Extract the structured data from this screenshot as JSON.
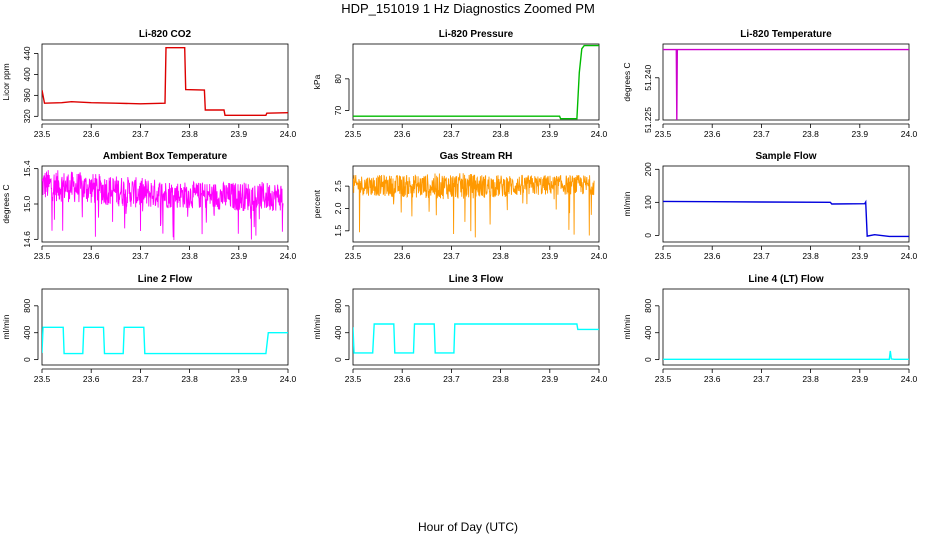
{
  "figure": {
    "title": "HDP_151019  1 Hz Diagnostics Zoomed PM",
    "xlabel": "Hour of Day (UTC)"
  },
  "chart_data": [
    {
      "type": "line",
      "title": "Li-820 CO2",
      "ylabel": "Licor ppm",
      "color": "#dd0000",
      "xlim": [
        23.5,
        24.0
      ],
      "ylim": [
        313,
        458
      ],
      "xticks": [
        23.5,
        23.6,
        23.7,
        23.8,
        23.9,
        24.0
      ],
      "xtick_labels": [
        "23.5",
        "23.6",
        "23.7",
        "23.8",
        "23.9",
        "24.0"
      ],
      "yticks": [
        320,
        360,
        400,
        440
      ],
      "ytick_labels": [
        "320",
        "360",
        "400",
        "440"
      ],
      "series": [
        {
          "style": "step",
          "points": [
            [
              23.5,
              370
            ],
            [
              23.505,
              345
            ],
            [
              23.54,
              346
            ],
            [
              23.56,
              348
            ],
            [
              23.6,
              346
            ],
            [
              23.65,
              345
            ],
            [
              23.7,
              344
            ],
            [
              23.75,
              345
            ],
            [
              23.752,
              451
            ],
            [
              23.79,
              451
            ],
            [
              23.792,
              371
            ],
            [
              23.83,
              370
            ],
            [
              23.832,
              332
            ],
            [
              23.87,
              332
            ],
            [
              23.872,
              322
            ],
            [
              23.955,
              322
            ],
            [
              23.957,
              326
            ],
            [
              24.0,
              327
            ]
          ]
        }
      ]
    },
    {
      "type": "line",
      "title": "Li-820 Pressure",
      "ylabel": "kPa",
      "color": "#00bb00",
      "xlim": [
        23.5,
        24.0
      ],
      "ylim": [
        67,
        91
      ],
      "xticks": [
        23.5,
        23.6,
        23.7,
        23.8,
        23.9,
        24.0
      ],
      "xtick_labels": [
        "23.5",
        "23.6",
        "23.7",
        "23.8",
        "23.9",
        "24.0"
      ],
      "yticks": [
        70,
        80
      ],
      "ytick_labels": [
        "70",
        "80"
      ],
      "series": [
        {
          "style": "step",
          "points": [
            [
              23.5,
              68.2
            ],
            [
              23.92,
              68.2
            ],
            [
              23.922,
              67.4
            ],
            [
              23.955,
              67.4
            ],
            [
              23.96,
              82
            ],
            [
              23.965,
              89.5
            ],
            [
              23.97,
              90.5
            ],
            [
              24.0,
              90.5
            ]
          ]
        }
      ]
    },
    {
      "type": "line",
      "title": "Li-820 Temperature",
      "ylabel": "degrees C",
      "color": "#cc00cc",
      "xlim": [
        23.5,
        24.0
      ],
      "ylim": [
        51.225,
        51.252
      ],
      "xticks": [
        23.5,
        23.6,
        23.7,
        23.8,
        23.9,
        24.0
      ],
      "xtick_labels": [
        "23.5",
        "23.6",
        "23.7",
        "23.8",
        "23.9",
        "24.0"
      ],
      "yticks": [
        51.225,
        51.24
      ],
      "ytick_labels": [
        "51.225",
        "51.240"
      ],
      "series": [
        {
          "style": "step",
          "points": [
            [
              23.5,
              51.25
            ],
            [
              23.527,
              51.25
            ],
            [
              23.528,
              51.225
            ],
            [
              23.529,
              51.25
            ],
            [
              24.0,
              51.25
            ]
          ]
        }
      ]
    },
    {
      "type": "line",
      "title": "Ambient Box Temperature",
      "ylabel": "degrees C",
      "color": "#ff00ff",
      "xlim": [
        23.5,
        24.0
      ],
      "ylim": [
        14.57,
        15.43
      ],
      "xticks": [
        23.5,
        23.6,
        23.7,
        23.8,
        23.9,
        24.0
      ],
      "xtick_labels": [
        "23.5",
        "23.6",
        "23.7",
        "23.8",
        "23.9",
        "24.0"
      ],
      "yticks": [
        14.6,
        15.0,
        15.4
      ],
      "ytick_labels": [
        "14.6",
        "15.0",
        "15.4"
      ],
      "series": [
        {
          "style": "band",
          "points": [
            [
              23.5,
              15.04,
              15.4
            ],
            [
              23.6,
              15.0,
              15.35
            ],
            [
              23.7,
              14.95,
              15.3
            ],
            [
              23.8,
              14.95,
              15.25
            ],
            [
              23.9,
              14.92,
              15.25
            ],
            [
              23.99,
              14.92,
              15.25
            ]
          ]
        }
      ]
    },
    {
      "type": "line",
      "title": "Gas Stream RH",
      "ylabel": "percent",
      "color": "#ff9900",
      "xlim": [
        23.5,
        24.0
      ],
      "ylim": [
        1.25,
        2.95
      ],
      "xticks": [
        23.5,
        23.6,
        23.7,
        23.8,
        23.9,
        24.0
      ],
      "xtick_labels": [
        "23.5",
        "23.6",
        "23.7",
        "23.8",
        "23.9",
        "24.0"
      ],
      "yticks": [
        1.5,
        2.0,
        2.5
      ],
      "ytick_labels": [
        "1.5",
        "2.0",
        "2.5"
      ],
      "series": [
        {
          "style": "band",
          "points": [
            [
              23.5,
              2.3,
              2.75
            ],
            [
              23.6,
              2.25,
              2.75
            ],
            [
              23.7,
              2.2,
              2.8
            ],
            [
              23.8,
              2.25,
              2.75
            ],
            [
              23.9,
              2.3,
              2.75
            ],
            [
              23.99,
              2.3,
              2.75
            ]
          ]
        }
      ]
    },
    {
      "type": "line",
      "title": "Sample Flow",
      "ylabel": "ml/min",
      "color": "#0000dd",
      "xlim": [
        23.5,
        24.0
      ],
      "ylim": [
        -20,
        210
      ],
      "xticks": [
        23.5,
        23.6,
        23.7,
        23.8,
        23.9,
        24.0
      ],
      "xtick_labels": [
        "23.5",
        "23.6",
        "23.7",
        "23.8",
        "23.9",
        "24.0"
      ],
      "yticks": [
        0,
        100,
        200
      ],
      "ytick_labels": [
        "0",
        "100",
        "200"
      ],
      "series": [
        {
          "style": "step",
          "points": [
            [
              23.5,
              103
            ],
            [
              23.6,
              102
            ],
            [
              23.7,
              101
            ],
            [
              23.84,
              100
            ],
            [
              23.843,
              95
            ],
            [
              23.91,
              96
            ],
            [
              23.912,
              101
            ],
            [
              23.915,
              -2
            ],
            [
              23.93,
              2
            ],
            [
              23.96,
              -3
            ],
            [
              24.0,
              -3
            ]
          ]
        }
      ]
    },
    {
      "type": "line",
      "title": "Line 2 Flow",
      "ylabel": "ml/min",
      "color": "#00ffff",
      "xlim": [
        23.5,
        24.0
      ],
      "ylim": [
        -80,
        1050
      ],
      "xticks": [
        23.5,
        23.6,
        23.7,
        23.8,
        23.9,
        24.0
      ],
      "xtick_labels": [
        "23.5",
        "23.6",
        "23.7",
        "23.8",
        "23.9",
        "24.0"
      ],
      "yticks": [
        0,
        400,
        800
      ],
      "ytick_labels": [
        "0",
        "400",
        "800"
      ],
      "series": [
        {
          "style": "step",
          "points": [
            [
              23.5,
              100
            ],
            [
              23.502,
              480
            ],
            [
              23.543,
              480
            ],
            [
              23.545,
              90
            ],
            [
              23.583,
              90
            ],
            [
              23.585,
              480
            ],
            [
              23.625,
              480
            ],
            [
              23.627,
              90
            ],
            [
              23.665,
              90
            ],
            [
              23.667,
              480
            ],
            [
              23.707,
              480
            ],
            [
              23.709,
              90
            ],
            [
              23.955,
              90
            ],
            [
              23.96,
              400
            ],
            [
              24.0,
              400
            ]
          ]
        }
      ]
    },
    {
      "type": "line",
      "title": "Line 3 Flow",
      "ylabel": "ml/min",
      "color": "#00ffff",
      "xlim": [
        23.5,
        24.0
      ],
      "ylim": [
        -80,
        1050
      ],
      "xticks": [
        23.5,
        23.6,
        23.7,
        23.8,
        23.9,
        24.0
      ],
      "xtick_labels": [
        "23.5",
        "23.6",
        "23.7",
        "23.8",
        "23.9",
        "24.0"
      ],
      "yticks": [
        0,
        400,
        800
      ],
      "ytick_labels": [
        "0",
        "400",
        "800"
      ],
      "series": [
        {
          "style": "step",
          "points": [
            [
              23.5,
              480
            ],
            [
              23.502,
              100
            ],
            [
              23.54,
              100
            ],
            [
              23.543,
              530
            ],
            [
              23.583,
              530
            ],
            [
              23.585,
              100
            ],
            [
              23.623,
              100
            ],
            [
              23.625,
              530
            ],
            [
              23.665,
              530
            ],
            [
              23.667,
              100
            ],
            [
              23.705,
              100
            ],
            [
              23.707,
              530
            ],
            [
              23.955,
              530
            ],
            [
              23.957,
              450
            ],
            [
              24.0,
              450
            ]
          ]
        }
      ]
    },
    {
      "type": "line",
      "title": "Line 4 (LT) Flow",
      "ylabel": "ml/min",
      "color": "#00ffff",
      "xlim": [
        23.5,
        24.0
      ],
      "ylim": [
        -80,
        1050
      ],
      "xticks": [
        23.5,
        23.6,
        23.7,
        23.8,
        23.9,
        24.0
      ],
      "xtick_labels": [
        "23.5",
        "23.6",
        "23.7",
        "23.8",
        "23.9",
        "24.0"
      ],
      "yticks": [
        0,
        400,
        800
      ],
      "ytick_labels": [
        "0",
        "400",
        "800"
      ],
      "series": [
        {
          "style": "step",
          "points": [
            [
              23.5,
              5
            ],
            [
              23.96,
              5
            ],
            [
              23.962,
              130
            ],
            [
              23.964,
              10
            ],
            [
              23.97,
              5
            ],
            [
              24.0,
              5
            ]
          ]
        }
      ]
    }
  ]
}
